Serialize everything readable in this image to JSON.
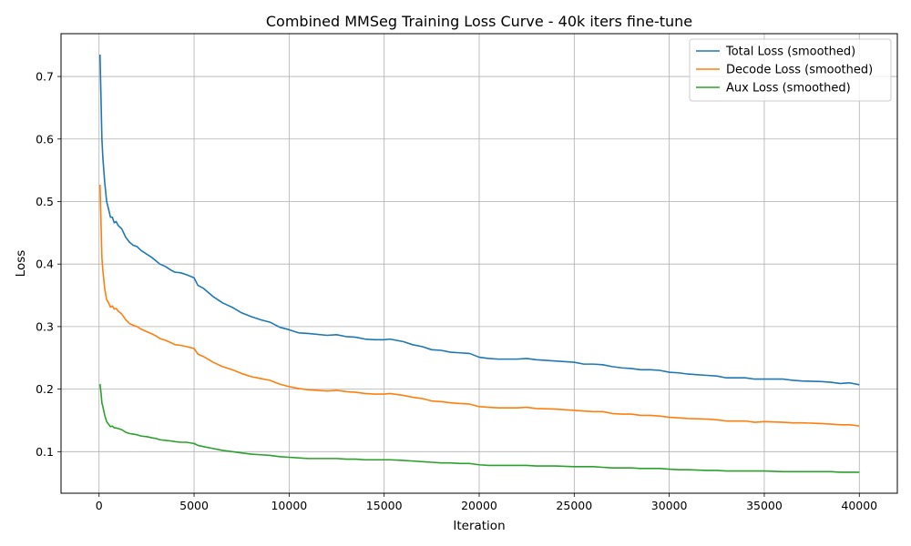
{
  "chart_data": {
    "type": "line",
    "title": "Combined MMSeg Training Loss Curve - 40k iters fine-tune",
    "xlabel": "Iteration",
    "ylabel": "Loss",
    "xlim": [
      -2000,
      42000
    ],
    "ylim": [
      0.0335,
      0.7685
    ],
    "xticks": [
      0,
      5000,
      10000,
      15000,
      20000,
      25000,
      30000,
      35000,
      40000
    ],
    "yticks": [
      0.1,
      0.2,
      0.3,
      0.4,
      0.5,
      0.6,
      0.7
    ],
    "grid": true,
    "legend_position": "top-right",
    "series": [
      {
        "name": "Total Loss (smoothed)",
        "color": "#1f77b4",
        "points": [
          [
            50,
            0.735
          ],
          [
            100,
            0.67
          ],
          [
            150,
            0.6
          ],
          [
            200,
            0.57
          ],
          [
            300,
            0.53
          ],
          [
            400,
            0.5
          ],
          [
            500,
            0.488
          ],
          [
            600,
            0.475
          ],
          [
            700,
            0.475
          ],
          [
            800,
            0.466
          ],
          [
            900,
            0.468
          ],
          [
            1000,
            0.462
          ],
          [
            1200,
            0.456
          ],
          [
            1400,
            0.443
          ],
          [
            1600,
            0.435
          ],
          [
            1800,
            0.43
          ],
          [
            2000,
            0.428
          ],
          [
            2200,
            0.422
          ],
          [
            2500,
            0.416
          ],
          [
            2800,
            0.41
          ],
          [
            3000,
            0.405
          ],
          [
            3200,
            0.4
          ],
          [
            3500,
            0.396
          ],
          [
            3800,
            0.39
          ],
          [
            4000,
            0.387
          ],
          [
            4300,
            0.386
          ],
          [
            4600,
            0.383
          ],
          [
            5000,
            0.378
          ],
          [
            5200,
            0.366
          ],
          [
            5500,
            0.361
          ],
          [
            6000,
            0.348
          ],
          [
            6500,
            0.338
          ],
          [
            7000,
            0.331
          ],
          [
            7500,
            0.322
          ],
          [
            8000,
            0.316
          ],
          [
            8500,
            0.311
          ],
          [
            9000,
            0.307
          ],
          [
            9500,
            0.299
          ],
          [
            10000,
            0.295
          ],
          [
            10500,
            0.29
          ],
          [
            11000,
            0.289
          ],
          [
            12000,
            0.286
          ],
          [
            12500,
            0.287
          ],
          [
            13000,
            0.284
          ],
          [
            13500,
            0.283
          ],
          [
            14000,
            0.28
          ],
          [
            14500,
            0.279
          ],
          [
            15000,
            0.279
          ],
          [
            15300,
            0.28
          ],
          [
            16000,
            0.276
          ],
          [
            16500,
            0.271
          ],
          [
            17000,
            0.268
          ],
          [
            17500,
            0.263
          ],
          [
            18000,
            0.262
          ],
          [
            18500,
            0.259
          ],
          [
            19000,
            0.258
          ],
          [
            19500,
            0.257
          ],
          [
            20000,
            0.251
          ],
          [
            20500,
            0.249
          ],
          [
            21000,
            0.248
          ],
          [
            22000,
            0.248
          ],
          [
            22500,
            0.249
          ],
          [
            23000,
            0.247
          ],
          [
            24000,
            0.245
          ],
          [
            25000,
            0.243
          ],
          [
            25500,
            0.24
          ],
          [
            26000,
            0.24
          ],
          [
            26500,
            0.239
          ],
          [
            27000,
            0.236
          ],
          [
            27500,
            0.234
          ],
          [
            28000,
            0.233
          ],
          [
            28500,
            0.231
          ],
          [
            29000,
            0.231
          ],
          [
            29500,
            0.23
          ],
          [
            30000,
            0.227
          ],
          [
            30500,
            0.226
          ],
          [
            31000,
            0.224
          ],
          [
            32000,
            0.222
          ],
          [
            32500,
            0.221
          ],
          [
            33000,
            0.218
          ],
          [
            34000,
            0.218
          ],
          [
            34500,
            0.216
          ],
          [
            35000,
            0.216
          ],
          [
            36000,
            0.216
          ],
          [
            36500,
            0.214
          ],
          [
            37000,
            0.213
          ],
          [
            38000,
            0.212
          ],
          [
            38500,
            0.211
          ],
          [
            39000,
            0.209
          ],
          [
            39500,
            0.21
          ],
          [
            40000,
            0.207
          ]
        ]
      },
      {
        "name": "Decode Loss (smoothed)",
        "color": "#ff7f0e",
        "points": [
          [
            50,
            0.527
          ],
          [
            100,
            0.47
          ],
          [
            150,
            0.41
          ],
          [
            200,
            0.39
          ],
          [
            300,
            0.36
          ],
          [
            400,
            0.343
          ],
          [
            500,
            0.338
          ],
          [
            600,
            0.331
          ],
          [
            700,
            0.333
          ],
          [
            800,
            0.328
          ],
          [
            900,
            0.329
          ],
          [
            1000,
            0.325
          ],
          [
            1200,
            0.32
          ],
          [
            1400,
            0.311
          ],
          [
            1600,
            0.305
          ],
          [
            1800,
            0.302
          ],
          [
            2000,
            0.3
          ],
          [
            2200,
            0.296
          ],
          [
            2500,
            0.292
          ],
          [
            2800,
            0.288
          ],
          [
            3000,
            0.285
          ],
          [
            3200,
            0.281
          ],
          [
            3500,
            0.278
          ],
          [
            3800,
            0.274
          ],
          [
            4000,
            0.271
          ],
          [
            4300,
            0.27
          ],
          [
            4600,
            0.268
          ],
          [
            5000,
            0.265
          ],
          [
            5200,
            0.256
          ],
          [
            5500,
            0.252
          ],
          [
            6000,
            0.243
          ],
          [
            6500,
            0.236
          ],
          [
            7000,
            0.231
          ],
          [
            7500,
            0.225
          ],
          [
            8000,
            0.22
          ],
          [
            8500,
            0.217
          ],
          [
            9000,
            0.214
          ],
          [
            9500,
            0.208
          ],
          [
            10000,
            0.204
          ],
          [
            10500,
            0.201
          ],
          [
            11000,
            0.199
          ],
          [
            12000,
            0.197
          ],
          [
            12500,
            0.198
          ],
          [
            13000,
            0.196
          ],
          [
            13500,
            0.195
          ],
          [
            14000,
            0.193
          ],
          [
            14500,
            0.192
          ],
          [
            15000,
            0.192
          ],
          [
            15300,
            0.193
          ],
          [
            16000,
            0.19
          ],
          [
            16500,
            0.187
          ],
          [
            17000,
            0.185
          ],
          [
            17500,
            0.181
          ],
          [
            18000,
            0.18
          ],
          [
            18500,
            0.178
          ],
          [
            19000,
            0.177
          ],
          [
            19500,
            0.176
          ],
          [
            20000,
            0.172
          ],
          [
            20500,
            0.171
          ],
          [
            21000,
            0.17
          ],
          [
            22000,
            0.17
          ],
          [
            22500,
            0.171
          ],
          [
            23000,
            0.169
          ],
          [
            24000,
            0.168
          ],
          [
            25000,
            0.166
          ],
          [
            25500,
            0.165
          ],
          [
            26000,
            0.164
          ],
          [
            26500,
            0.164
          ],
          [
            27000,
            0.161
          ],
          [
            27500,
            0.16
          ],
          [
            28000,
            0.16
          ],
          [
            28500,
            0.158
          ],
          [
            29000,
            0.158
          ],
          [
            29500,
            0.157
          ],
          [
            30000,
            0.155
          ],
          [
            30500,
            0.154
          ],
          [
            31000,
            0.153
          ],
          [
            32000,
            0.152
          ],
          [
            32500,
            0.151
          ],
          [
            33000,
            0.149
          ],
          [
            34000,
            0.149
          ],
          [
            34500,
            0.147
          ],
          [
            35000,
            0.148
          ],
          [
            36000,
            0.147
          ],
          [
            36500,
            0.146
          ],
          [
            37000,
            0.146
          ],
          [
            38000,
            0.145
          ],
          [
            38500,
            0.144
          ],
          [
            39000,
            0.143
          ],
          [
            39500,
            0.143
          ],
          [
            40000,
            0.141
          ]
        ]
      },
      {
        "name": "Aux Loss (smoothed)",
        "color": "#2ca02c",
        "points": [
          [
            50,
            0.208
          ],
          [
            100,
            0.195
          ],
          [
            150,
            0.178
          ],
          [
            200,
            0.172
          ],
          [
            300,
            0.158
          ],
          [
            400,
            0.148
          ],
          [
            500,
            0.144
          ],
          [
            600,
            0.14
          ],
          [
            700,
            0.141
          ],
          [
            800,
            0.138
          ],
          [
            900,
            0.138
          ],
          [
            1000,
            0.137
          ],
          [
            1200,
            0.135
          ],
          [
            1400,
            0.131
          ],
          [
            1600,
            0.129
          ],
          [
            1800,
            0.128
          ],
          [
            2000,
            0.127
          ],
          [
            2200,
            0.125
          ],
          [
            2500,
            0.124
          ],
          [
            2800,
            0.122
          ],
          [
            3000,
            0.121
          ],
          [
            3200,
            0.119
          ],
          [
            3500,
            0.118
          ],
          [
            3800,
            0.117
          ],
          [
            4000,
            0.116
          ],
          [
            4300,
            0.115
          ],
          [
            4600,
            0.115
          ],
          [
            5000,
            0.113
          ],
          [
            5200,
            0.11
          ],
          [
            5500,
            0.108
          ],
          [
            6000,
            0.105
          ],
          [
            6500,
            0.102
          ],
          [
            7000,
            0.1
          ],
          [
            7500,
            0.098
          ],
          [
            8000,
            0.096
          ],
          [
            8500,
            0.095
          ],
          [
            9000,
            0.094
          ],
          [
            9500,
            0.092
          ],
          [
            10000,
            0.091
          ],
          [
            10500,
            0.09
          ],
          [
            11000,
            0.089
          ],
          [
            12000,
            0.089
          ],
          [
            12500,
            0.089
          ],
          [
            13000,
            0.088
          ],
          [
            13500,
            0.088
          ],
          [
            14000,
            0.087
          ],
          [
            14500,
            0.087
          ],
          [
            15000,
            0.087
          ],
          [
            15300,
            0.087
          ],
          [
            16000,
            0.086
          ],
          [
            16500,
            0.085
          ],
          [
            17000,
            0.084
          ],
          [
            17500,
            0.083
          ],
          [
            18000,
            0.082
          ],
          [
            18500,
            0.082
          ],
          [
            19000,
            0.081
          ],
          [
            19500,
            0.081
          ],
          [
            20000,
            0.079
          ],
          [
            20500,
            0.078
          ],
          [
            21000,
            0.078
          ],
          [
            22000,
            0.078
          ],
          [
            22500,
            0.078
          ],
          [
            23000,
            0.077
          ],
          [
            24000,
            0.077
          ],
          [
            25000,
            0.076
          ],
          [
            25500,
            0.076
          ],
          [
            26000,
            0.076
          ],
          [
            26500,
            0.075
          ],
          [
            27000,
            0.074
          ],
          [
            27500,
            0.074
          ],
          [
            28000,
            0.074
          ],
          [
            28500,
            0.073
          ],
          [
            29000,
            0.073
          ],
          [
            29500,
            0.073
          ],
          [
            30000,
            0.072
          ],
          [
            30500,
            0.071
          ],
          [
            31000,
            0.071
          ],
          [
            32000,
            0.07
          ],
          [
            32500,
            0.07
          ],
          [
            33000,
            0.069
          ],
          [
            34000,
            0.069
          ],
          [
            34500,
            0.069
          ],
          [
            35000,
            0.069
          ],
          [
            36000,
            0.068
          ],
          [
            36500,
            0.068
          ],
          [
            37000,
            0.068
          ],
          [
            38000,
            0.068
          ],
          [
            38500,
            0.068
          ],
          [
            39000,
            0.067
          ],
          [
            39500,
            0.067
          ],
          [
            40000,
            0.067
          ]
        ]
      }
    ]
  }
}
